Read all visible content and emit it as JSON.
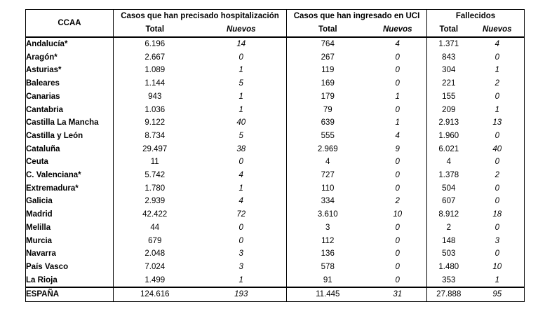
{
  "header": {
    "ccaa": "CCAA",
    "groups": [
      "Casos que han precisado hospitalización",
      "Casos que han ingresado en UCI",
      "Fallecidos"
    ],
    "total_label": "Total",
    "nuevos_label": "Nuevos"
  },
  "rows": [
    {
      "name": "Andalucía*",
      "cells": [
        "6.196",
        "14",
        "764",
        "4",
        "1.371",
        "4"
      ]
    },
    {
      "name": "Aragón*",
      "cells": [
        "2.667",
        "0",
        "267",
        "0",
        "843",
        "0"
      ]
    },
    {
      "name": "Asturias*",
      "cells": [
        "1.089",
        "1",
        "119",
        "0",
        "304",
        "1"
      ]
    },
    {
      "name": "Baleares",
      "cells": [
        "1.144",
        "5",
        "169",
        "0",
        "221",
        "2"
      ]
    },
    {
      "name": "Canarias",
      "cells": [
        "943",
        "1",
        "179",
        "1",
        "155",
        "0"
      ]
    },
    {
      "name": "Cantabria",
      "cells": [
        "1.036",
        "1",
        "79",
        "0",
        "209",
        "1"
      ]
    },
    {
      "name": "Castilla La Mancha",
      "cells": [
        "9.122",
        "40",
        "639",
        "1",
        "2.913",
        "13"
      ]
    },
    {
      "name": "Castilla y León",
      "cells": [
        "8.734",
        "5",
        "555",
        "4",
        "1.960",
        "0"
      ]
    },
    {
      "name": "Cataluña",
      "cells": [
        "29.497",
        "38",
        "2.969",
        "9",
        "6.021",
        "40"
      ]
    },
    {
      "name": "Ceuta",
      "cells": [
        "11",
        "0",
        "4",
        "0",
        "4",
        "0"
      ]
    },
    {
      "name": "C. Valenciana*",
      "cells": [
        "5.742",
        "4",
        "727",
        "0",
        "1.378",
        "2"
      ]
    },
    {
      "name": "Extremadura*",
      "cells": [
        "1.780",
        "1",
        "110",
        "0",
        "504",
        "0"
      ]
    },
    {
      "name": "Galicia",
      "cells": [
        "2.939",
        "4",
        "334",
        "2",
        "607",
        "0"
      ]
    },
    {
      "name": "Madrid",
      "cells": [
        "42.422",
        "72",
        "3.610",
        "10",
        "8.912",
        "18"
      ]
    },
    {
      "name": "Melilla",
      "cells": [
        "44",
        "0",
        "3",
        "0",
        "2",
        "0"
      ]
    },
    {
      "name": "Murcia",
      "cells": [
        "679",
        "0",
        "112",
        "0",
        "148",
        "3"
      ]
    },
    {
      "name": "Navarra",
      "cells": [
        "2.048",
        "3",
        "136",
        "0",
        "503",
        "0"
      ]
    },
    {
      "name": "País Vasco",
      "cells": [
        "7.024",
        "3",
        "578",
        "0",
        "1.480",
        "10"
      ]
    },
    {
      "name": "La Rioja",
      "cells": [
        "1.499",
        "1",
        "91",
        "0",
        "353",
        "1"
      ]
    }
  ],
  "total": {
    "name": "ESPAÑA",
    "cells": [
      "124.616",
      "193",
      "11.445",
      "31",
      "27.888",
      "95"
    ]
  }
}
